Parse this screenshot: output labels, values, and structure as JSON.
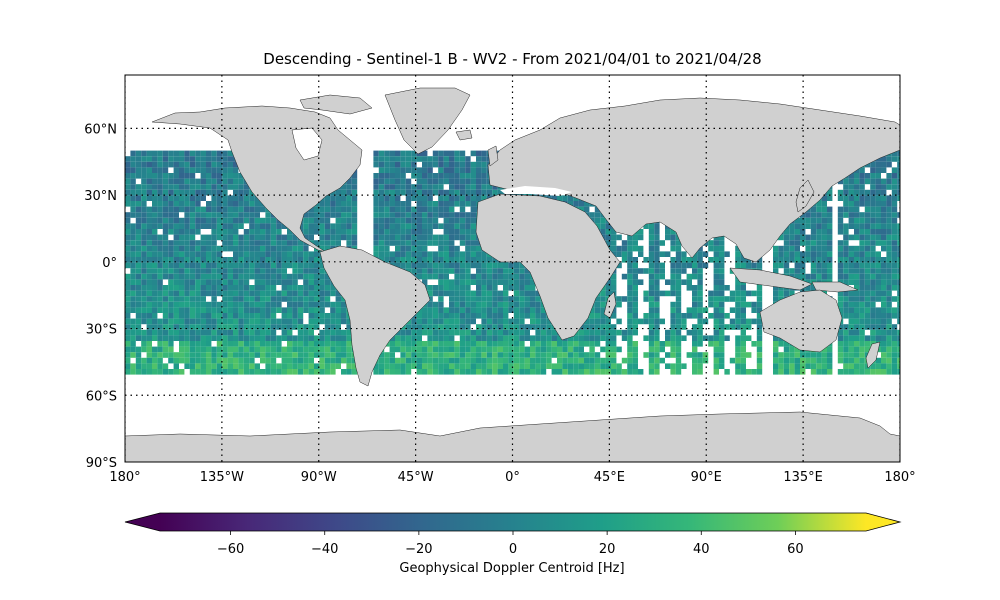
{
  "title": "Descending - Sentinel-1 B - WV2 - From 2021/04/01 to 2021/04/28",
  "map": {
    "lon_ticks": [
      {
        "value": -180,
        "label": "180°"
      },
      {
        "value": -135,
        "label": "135°W"
      },
      {
        "value": -90,
        "label": "90°W"
      },
      {
        "value": -45,
        "label": "45°W"
      },
      {
        "value": 0,
        "label": "0°"
      },
      {
        "value": 45,
        "label": "45°E"
      },
      {
        "value": 90,
        "label": "90°E"
      },
      {
        "value": 135,
        "label": "135°E"
      },
      {
        "value": 180,
        "label": "180°"
      }
    ],
    "lat_ticks": [
      {
        "value": 60,
        "label": "60°N"
      },
      {
        "value": 30,
        "label": "30°N"
      },
      {
        "value": 0,
        "label": "0°"
      },
      {
        "value": -30,
        "label": "30°S"
      },
      {
        "value": -60,
        "label": "60°S"
      },
      {
        "value": -90,
        "label": "90°S"
      }
    ],
    "lon_range": [
      -180,
      180
    ],
    "lat_range": [
      -90,
      84
    ],
    "gridlines": "dotted",
    "land_color": "#d0d0d0",
    "ocean_color": "#ffffff",
    "data_lat_range": [
      -50,
      50
    ]
  },
  "colorbar": {
    "label": "Geophysical Doppler Centroid [Hz]",
    "vmin": -75,
    "vmax": 75,
    "extend": "both",
    "colormap": "viridis",
    "ticks": [
      {
        "value": -60,
        "label": "−60"
      },
      {
        "value": -40,
        "label": "−40"
      },
      {
        "value": -20,
        "label": "−20"
      },
      {
        "value": 0,
        "label": "0"
      },
      {
        "value": 20,
        "label": "20"
      },
      {
        "value": 40,
        "label": "40"
      },
      {
        "value": 60,
        "label": "60"
      }
    ]
  }
}
